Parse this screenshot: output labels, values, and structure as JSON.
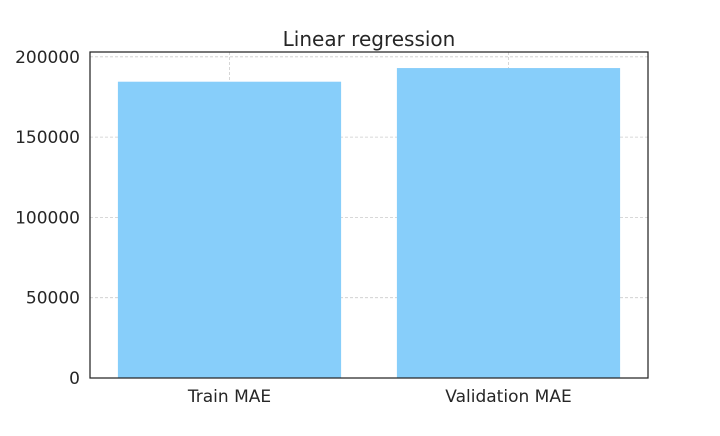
{
  "chart_data": {
    "type": "bar",
    "title": "Linear regression",
    "categories": [
      "Train MAE",
      "Validation MAE"
    ],
    "values": [
      184500,
      193000
    ],
    "ylim": [
      0,
      203000
    ],
    "yticks": [
      0,
      50000,
      100000,
      150000,
      200000
    ],
    "ytick_labels": [
      "0",
      "50000",
      "100000",
      "150000",
      "200000"
    ],
    "grid": true,
    "legend": "none",
    "bar_color": "#87CEFA",
    "grid_color": "#cccccc",
    "axis_color": "#262626"
  }
}
